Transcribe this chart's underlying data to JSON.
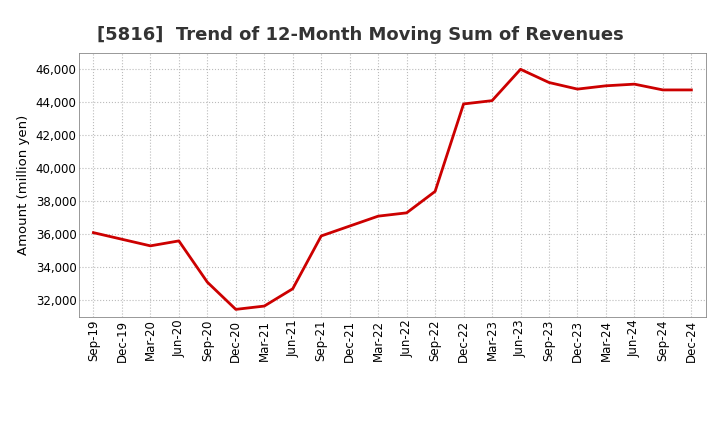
{
  "title": "[5816]  Trend of 12-Month Moving Sum of Revenues",
  "ylabel": "Amount (million yen)",
  "background_color": "#ffffff",
  "line_color": "#cc0000",
  "line_width": 2.0,
  "x_labels": [
    "Sep-19",
    "Dec-19",
    "Mar-20",
    "Jun-20",
    "Sep-20",
    "Dec-20",
    "Mar-21",
    "Jun-21",
    "Sep-21",
    "Dec-21",
    "Mar-22",
    "Jun-22",
    "Sep-22",
    "Dec-22",
    "Mar-23",
    "Jun-23",
    "Sep-23",
    "Dec-23",
    "Mar-24",
    "Jun-24",
    "Sep-24",
    "Dec-24"
  ],
  "y_values": [
    36100,
    35700,
    35300,
    35600,
    33100,
    31450,
    31650,
    32700,
    35900,
    36500,
    37100,
    37300,
    38600,
    43900,
    44100,
    46000,
    45200,
    44800,
    45000,
    45100,
    44750,
    44750
  ],
  "ylim": [
    31000,
    47000
  ],
  "yticks": [
    32000,
    34000,
    36000,
    38000,
    40000,
    42000,
    44000,
    46000
  ],
  "grid_color": "#bbbbbb",
  "title_fontsize": 13,
  "tick_fontsize": 8.5,
  "label_fontsize": 9.5
}
